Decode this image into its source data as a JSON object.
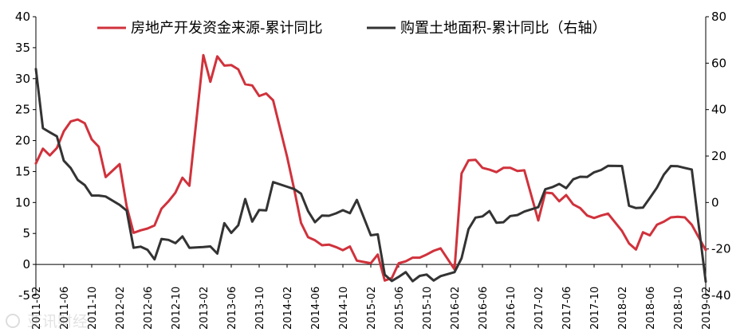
{
  "chart_data": {
    "type": "line",
    "title": "",
    "legend": {
      "placement": "top",
      "entries": [
        "房地产开发资金来源-累计同比",
        "购置土地面积-累计同比（右轴）"
      ]
    },
    "y_left": {
      "min": -5,
      "max": 40,
      "ticks": [
        -5,
        0,
        5,
        10,
        15,
        20,
        25,
        30,
        35,
        40
      ]
    },
    "y_right": {
      "min": -40,
      "max": 80,
      "ticks": [
        -40,
        -20,
        0,
        20,
        40,
        60,
        80
      ]
    },
    "x_start": "2011-02",
    "x_ticks": [
      "2011-02",
      "2011-06",
      "2011-10",
      "2012-02",
      "2012-06",
      "2012-10",
      "2013-02",
      "2013-06",
      "2013-10",
      "2014-02",
      "2014-06",
      "2014-10",
      "2015-02",
      "2015-06",
      "2015-10",
      "2016-02",
      "2016-06",
      "2016-10",
      "2017-02",
      "2017-06",
      "2017-10",
      "2018-02",
      "2018-06",
      "2018-10",
      "2019-02"
    ],
    "series": [
      {
        "name": "房地产开发资金来源-累计同比",
        "axis": "left",
        "color": "#d0323c",
        "points": [
          [
            "2011-02",
            16.3
          ],
          [
            "2011-03",
            18.7
          ],
          [
            "2011-04",
            17.6
          ],
          [
            "2011-05",
            18.8
          ],
          [
            "2011-06",
            21.5
          ],
          [
            "2011-07",
            23.1
          ],
          [
            "2011-08",
            23.4
          ],
          [
            "2011-09",
            22.8
          ],
          [
            "2011-10",
            20.2
          ],
          [
            "2011-11",
            19.0
          ],
          [
            "2011-12",
            14.1
          ],
          [
            "2012-02",
            16.2
          ],
          [
            "2012-03",
            9.4
          ],
          [
            "2012-04",
            5.1
          ],
          [
            "2012-05",
            5.5
          ],
          [
            "2012-06",
            5.8
          ],
          [
            "2012-07",
            6.3
          ],
          [
            "2012-08",
            9.0
          ],
          [
            "2012-09",
            10.2
          ],
          [
            "2012-10",
            11.6
          ],
          [
            "2012-11",
            14.0
          ],
          [
            "2012-12",
            12.7
          ],
          [
            "2013-02",
            33.8
          ],
          [
            "2013-03",
            29.5
          ],
          [
            "2013-04",
            33.6
          ],
          [
            "2013-05",
            32.1
          ],
          [
            "2013-06",
            32.2
          ],
          [
            "2013-07",
            31.5
          ],
          [
            "2013-08",
            29.1
          ],
          [
            "2013-09",
            28.9
          ],
          [
            "2013-10",
            27.2
          ],
          [
            "2013-11",
            27.6
          ],
          [
            "2013-12",
            26.5
          ],
          [
            "2014-02",
            17.4
          ],
          [
            "2014-03",
            12.2
          ],
          [
            "2014-04",
            6.7
          ],
          [
            "2014-05",
            4.4
          ],
          [
            "2014-06",
            3.9
          ],
          [
            "2014-07",
            3.1
          ],
          [
            "2014-08",
            3.2
          ],
          [
            "2014-09",
            2.8
          ],
          [
            "2014-10",
            2.3
          ],
          [
            "2014-11",
            2.9
          ],
          [
            "2014-12",
            0.6
          ],
          [
            "2015-02",
            0.2
          ],
          [
            "2015-03",
            1.6
          ],
          [
            "2015-04",
            -2.6
          ],
          [
            "2015-05",
            -2.2
          ],
          [
            "2015-06",
            0.2
          ],
          [
            "2015-07",
            0.5
          ],
          [
            "2015-08",
            1.1
          ],
          [
            "2015-09",
            1.1
          ],
          [
            "2015-10",
            1.6
          ],
          [
            "2015-11",
            2.2
          ],
          [
            "2015-12",
            2.6
          ],
          [
            "2016-02",
            -0.8
          ],
          [
            "2016-03",
            14.7
          ],
          [
            "2016-04",
            16.8
          ],
          [
            "2016-05",
            16.9
          ],
          [
            "2016-06",
            15.6
          ],
          [
            "2016-07",
            15.3
          ],
          [
            "2016-08",
            14.9
          ],
          [
            "2016-09",
            15.6
          ],
          [
            "2016-10",
            15.6
          ],
          [
            "2016-11",
            15.1
          ],
          [
            "2016-12",
            15.2
          ],
          [
            "2017-02",
            7.1
          ],
          [
            "2017-03",
            11.6
          ],
          [
            "2017-04",
            11.5
          ],
          [
            "2017-05",
            10.2
          ],
          [
            "2017-06",
            11.2
          ],
          [
            "2017-07",
            9.7
          ],
          [
            "2017-08",
            9.1
          ],
          [
            "2017-09",
            7.9
          ],
          [
            "2017-10",
            7.5
          ],
          [
            "2017-11",
            7.9
          ],
          [
            "2017-12",
            8.2
          ],
          [
            "2018-02",
            5.4
          ],
          [
            "2018-03",
            3.4
          ],
          [
            "2018-04",
            2.4
          ],
          [
            "2018-05",
            5.2
          ],
          [
            "2018-06",
            4.7
          ],
          [
            "2018-07",
            6.4
          ],
          [
            "2018-08",
            6.9
          ],
          [
            "2018-09",
            7.6
          ],
          [
            "2018-10",
            7.7
          ],
          [
            "2018-11",
            7.6
          ],
          [
            "2018-12",
            6.4
          ],
          [
            "2019-02",
            2.3
          ]
        ]
      },
      {
        "name": "购置土地面积-累计同比（右轴）",
        "axis": "right",
        "color": "#333333",
        "points": [
          [
            "2011-02",
            57.5
          ],
          [
            "2011-03",
            32.0
          ],
          [
            "2011-04",
            30.2
          ],
          [
            "2011-05",
            28.5
          ],
          [
            "2011-06",
            18.0
          ],
          [
            "2011-07",
            14.8
          ],
          [
            "2011-08",
            9.7
          ],
          [
            "2011-09",
            7.5
          ],
          [
            "2011-10",
            3.0
          ],
          [
            "2011-11",
            3.0
          ],
          [
            "2011-12",
            2.6
          ],
          [
            "2012-02",
            -1.0
          ],
          [
            "2012-03",
            -3.5
          ],
          [
            "2012-04",
            -19.5
          ],
          [
            "2012-05",
            -19.0
          ],
          [
            "2012-06",
            -20.4
          ],
          [
            "2012-07",
            -24.5
          ],
          [
            "2012-08",
            -15.7
          ],
          [
            "2012-09",
            -16.1
          ],
          [
            "2012-10",
            -17.5
          ],
          [
            "2012-11",
            -14.6
          ],
          [
            "2012-12",
            -19.5
          ],
          [
            "2013-02",
            -19.2
          ],
          [
            "2013-03",
            -18.9
          ],
          [
            "2013-04",
            -22.0
          ],
          [
            "2013-05",
            -8.9
          ],
          [
            "2013-06",
            -13.1
          ],
          [
            "2013-07",
            -9.8
          ],
          [
            "2013-08",
            1.5
          ],
          [
            "2013-09",
            -8.2
          ],
          [
            "2013-10",
            -3.2
          ],
          [
            "2013-11",
            -3.4
          ],
          [
            "2013-12",
            8.8
          ],
          [
            "2014-02",
            6.8
          ],
          [
            "2014-03",
            5.8
          ],
          [
            "2014-04",
            3.8
          ],
          [
            "2014-05",
            -3.7
          ],
          [
            "2014-06",
            -8.5
          ],
          [
            "2014-07",
            -5.6
          ],
          [
            "2014-08",
            -5.7
          ],
          [
            "2014-09",
            -4.7
          ],
          [
            "2014-10",
            -3.3
          ],
          [
            "2014-11",
            -4.6
          ],
          [
            "2014-12",
            1.1
          ],
          [
            "2015-02",
            -14.1
          ],
          [
            "2015-03",
            -13.7
          ],
          [
            "2015-04",
            -31.1
          ],
          [
            "2015-05",
            -33.8
          ],
          [
            "2015-06",
            -32.0
          ],
          [
            "2015-07",
            -30.0
          ],
          [
            "2015-08",
            -33.9
          ],
          [
            "2015-09",
            -31.6
          ],
          [
            "2015-10",
            -31.0
          ],
          [
            "2015-11",
            -33.6
          ],
          [
            "2015-12",
            -31.7
          ],
          [
            "2016-02",
            -30.0
          ],
          [
            "2016-03",
            -24.0
          ],
          [
            "2016-04",
            -11.5
          ],
          [
            "2016-05",
            -6.5
          ],
          [
            "2016-06",
            -6.0
          ],
          [
            "2016-07",
            -3.7
          ],
          [
            "2016-08",
            -8.7
          ],
          [
            "2016-09",
            -8.5
          ],
          [
            "2016-10",
            -5.8
          ],
          [
            "2016-11",
            -5.4
          ],
          [
            "2016-12",
            -3.9
          ],
          [
            "2017-02",
            -2.0
          ],
          [
            "2017-03",
            5.7
          ],
          [
            "2017-04",
            6.6
          ],
          [
            "2017-05",
            8.0
          ],
          [
            "2017-06",
            6.2
          ],
          [
            "2017-07",
            10.0
          ],
          [
            "2017-08",
            11.1
          ],
          [
            "2017-09",
            11.0
          ],
          [
            "2017-10",
            13.0
          ],
          [
            "2017-11",
            14.0
          ],
          [
            "2017-12",
            15.8
          ],
          [
            "2018-02",
            15.7
          ],
          [
            "2018-03",
            -1.4
          ],
          [
            "2018-04",
            -2.4
          ],
          [
            "2018-05",
            -2.2
          ],
          [
            "2018-06",
            2.0
          ],
          [
            "2018-07",
            6.4
          ],
          [
            "2018-08",
            12.0
          ],
          [
            "2018-09",
            15.7
          ],
          [
            "2018-10",
            15.6
          ],
          [
            "2018-11",
            14.9
          ],
          [
            "2018-12",
            14.2
          ],
          [
            "2019-02",
            -34.1
          ]
        ]
      }
    ]
  },
  "watermark": "亚讯财经"
}
